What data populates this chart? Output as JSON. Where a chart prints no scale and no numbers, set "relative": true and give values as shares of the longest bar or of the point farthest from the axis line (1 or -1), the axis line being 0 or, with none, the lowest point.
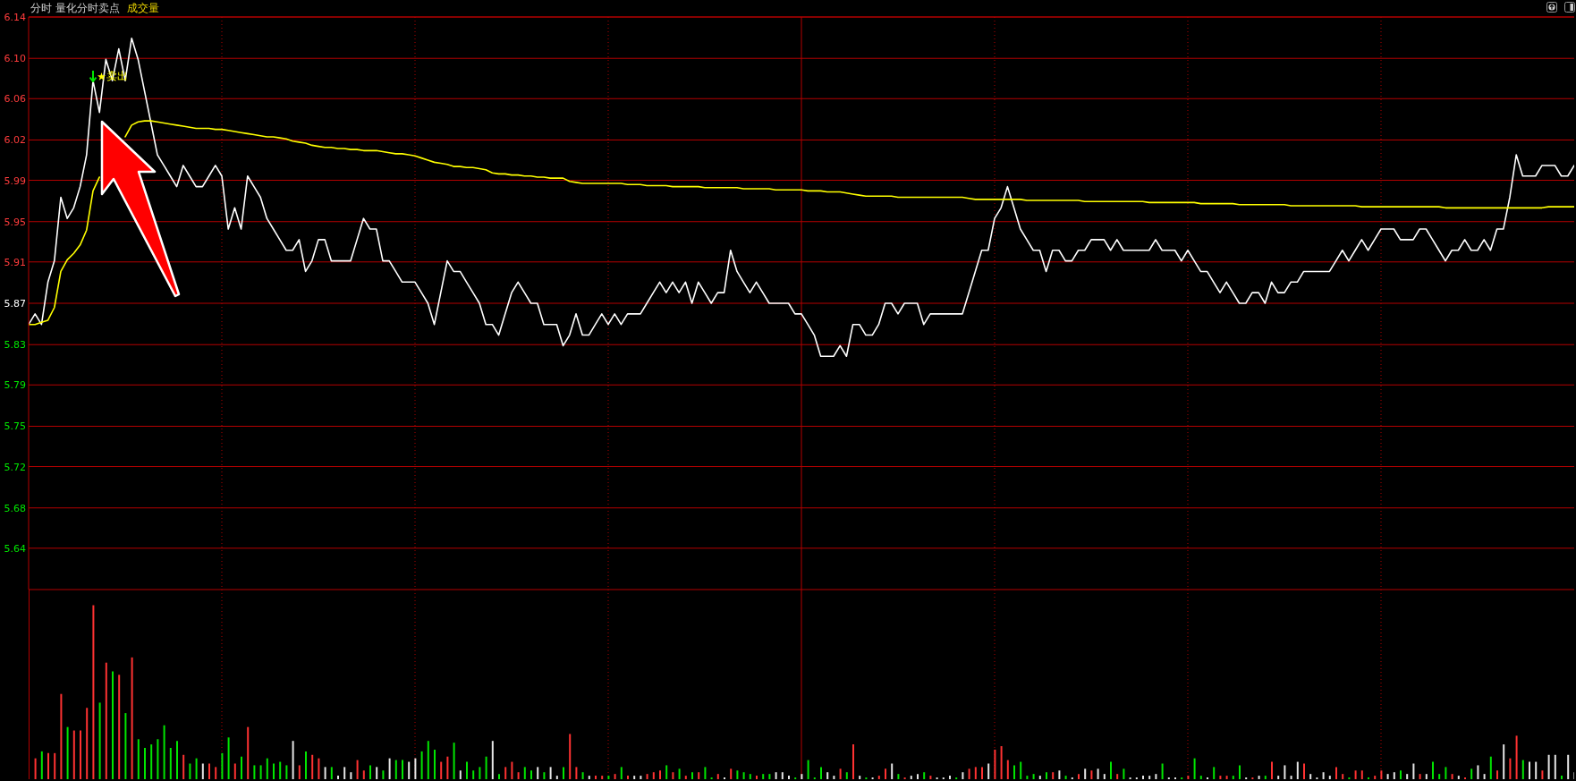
{
  "chart_data": [
    {
      "type": "line",
      "title": "分时 量化分时卖点",
      "subtitle": "成交量",
      "categories": [
        null,
        null,
        null,
        null,
        null,
        null,
        null,
        null,
        null,
        null,
        null,
        null,
        null,
        null,
        null,
        null,
        null,
        null,
        null,
        null,
        null,
        null,
        null,
        null,
        null,
        null,
        null,
        null,
        null,
        null,
        null,
        null,
        null,
        null,
        null,
        null,
        null,
        null,
        null,
        null,
        null,
        null,
        null,
        null,
        null,
        null,
        null,
        null,
        null,
        null,
        null,
        null,
        null,
        null,
        null,
        null,
        null,
        null,
        null,
        null,
        null,
        null,
        null,
        null,
        null,
        null,
        null,
        null,
        null,
        null,
        null,
        null,
        null,
        null,
        null,
        null,
        null,
        null,
        null,
        null,
        null,
        null,
        null,
        null,
        null,
        null,
        null,
        null,
        null,
        null,
        null,
        null,
        null,
        null,
        null,
        null,
        null,
        null,
        null,
        null,
        null,
        null,
        null,
        null,
        null,
        null,
        null,
        null,
        null,
        null,
        null,
        null,
        null,
        null,
        null,
        null,
        null,
        null,
        null,
        null,
        null,
        null,
        null,
        null,
        null,
        null,
        null,
        null,
        null,
        null,
        null,
        null,
        null,
        null,
        null,
        null,
        null,
        null,
        null,
        null,
        null,
        null,
        null,
        null,
        null,
        null,
        null,
        null,
        null,
        null,
        null,
        null,
        null,
        null,
        null,
        null,
        null,
        null,
        null,
        null,
        null,
        null,
        null,
        null,
        null,
        null,
        null,
        null,
        null,
        null,
        null,
        null,
        null,
        null,
        null,
        null,
        null,
        null,
        null,
        null,
        null,
        null,
        null,
        null,
        null,
        null,
        null,
        null,
        null,
        null,
        null,
        null,
        null,
        null,
        null,
        null,
        null,
        null,
        null,
        null,
        null,
        null,
        null,
        null,
        null,
        null,
        null,
        null,
        null,
        null,
        null,
        null,
        null,
        null,
        null,
        null,
        null,
        null,
        null,
        null,
        null,
        null,
        null,
        null,
        null,
        null,
        null,
        null,
        null,
        null,
        null,
        null,
        null,
        null,
        null,
        null,
        null,
        null,
        null,
        null,
        null
      ],
      "series": [
        {
          "color": "#ffffff",
          "values": [
            5.85,
            5.86,
            5.85,
            5.89,
            5.91,
            5.97,
            5.95,
            5.96,
            5.98,
            6.01,
            6.08,
            6.05,
            6.1,
            6.08,
            6.11,
            6.08,
            6.12,
            6.1,
            6.07,
            6.04,
            6.01,
            6.0,
            5.99,
            5.98,
            6.0,
            5.99,
            5.98,
            5.98,
            5.99,
            6.0,
            5.99,
            5.94,
            5.96,
            5.94,
            5.99,
            5.98,
            5.97,
            5.95,
            5.94,
            5.93,
            5.92,
            5.92,
            5.93,
            5.9,
            5.91,
            5.93,
            5.93,
            5.91,
            5.91,
            5.91,
            5.91,
            5.93,
            5.95,
            5.94,
            5.94,
            5.91,
            5.91,
            5.9,
            5.89,
            5.89,
            5.89,
            5.88,
            5.87,
            5.85,
            5.88,
            5.91,
            5.9,
            5.9,
            5.89,
            5.88,
            5.87,
            5.85,
            5.85,
            5.84,
            5.86,
            5.88,
            5.89,
            5.88,
            5.87,
            5.87,
            5.85,
            5.85,
            5.85,
            5.83,
            5.84,
            5.86,
            5.84,
            5.84,
            5.85,
            5.86,
            5.85,
            5.86,
            5.85,
            5.86,
            5.86,
            5.86,
            5.87,
            5.88,
            5.89,
            5.88,
            5.89,
            5.88,
            5.89,
            5.87,
            5.89,
            5.88,
            5.87,
            5.88,
            5.88,
            5.92,
            5.9,
            5.89,
            5.88,
            5.89,
            5.88,
            5.87,
            5.87,
            5.87,
            5.87,
            5.86,
            5.86,
            5.85,
            5.84,
            5.82,
            5.82,
            5.82,
            5.83,
            5.82,
            5.85,
            5.85,
            5.84,
            5.84,
            5.85,
            5.87,
            5.87,
            5.86,
            5.87,
            5.87,
            5.87,
            5.85,
            5.86,
            5.86,
            5.86,
            5.86,
            5.86,
            5.86,
            5.88,
            5.9,
            5.92,
            5.92,
            5.95,
            5.96,
            5.98,
            5.96,
            5.94,
            5.93,
            5.92,
            5.92,
            5.9,
            5.92,
            5.92,
            5.91,
            5.91,
            5.92,
            5.92,
            5.93,
            5.93,
            5.93,
            5.92,
            5.93,
            5.92,
            5.92,
            5.92,
            5.92,
            5.92,
            5.93,
            5.92,
            5.92,
            5.92,
            5.91,
            5.92,
            5.91,
            5.9,
            5.9,
            5.89,
            5.88,
            5.89,
            5.88,
            5.87,
            5.87,
            5.88,
            5.88,
            5.87,
            5.89,
            5.88,
            5.88,
            5.89,
            5.89,
            5.9,
            5.9,
            5.9,
            5.9,
            5.9,
            5.91,
            5.92,
            5.91,
            5.92,
            5.93,
            5.92,
            5.93,
            5.94,
            5.94,
            5.94,
            5.93,
            5.93,
            5.93,
            5.94,
            5.94,
            5.93,
            5.92,
            5.91,
            5.92,
            5.92,
            5.93,
            5.92,
            5.92,
            5.93,
            5.92,
            5.94,
            5.94,
            5.97,
            6.01,
            5.99,
            5.99,
            5.99,
            6.0,
            6.0,
            6.0,
            5.99,
            5.99,
            6.0
          ]
        },
        {
          "color": "#ffff00",
          "values": [
            5.85,
            5.85,
            5.852,
            5.854,
            5.866,
            5.9,
            5.911,
            5.917,
            5.925,
            5.939,
            5.976,
            5.989,
            null,
            null,
            null,
            6.027,
            6.038,
            6.041,
            6.042,
            6.042,
            6.041,
            6.04,
            6.039,
            6.038,
            6.037,
            6.036,
            6.035,
            6.035,
            6.035,
            6.034,
            6.034,
            6.033,
            6.032,
            6.031,
            6.03,
            6.029,
            6.028,
            6.027,
            6.027,
            6.026,
            6.025,
            6.023,
            6.022,
            6.021,
            6.019,
            6.018,
            6.017,
            6.017,
            6.016,
            6.016,
            6.015,
            6.015,
            6.014,
            6.014,
            6.014,
            6.013,
            6.012,
            6.011,
            6.011,
            6.01,
            6.009,
            6.007,
            6.005,
            6.003,
            6.002,
            6.001,
            5.999,
            5.999,
            5.998,
            5.998,
            5.997,
            5.996,
            5.993,
            5.992,
            5.992,
            5.991,
            5.991,
            5.99,
            5.99,
            5.989,
            5.989,
            5.988,
            5.988,
            5.988,
            5.985,
            5.984,
            5.983,
            5.983,
            5.983,
            5.983,
            5.983,
            5.983,
            5.983,
            5.982,
            5.982,
            5.982,
            5.981,
            5.981,
            5.981,
            5.981,
            5.98,
            5.98,
            5.98,
            5.98,
            5.98,
            5.979,
            5.979,
            5.979,
            5.979,
            5.979,
            5.979,
            5.978,
            5.978,
            5.978,
            5.978,
            5.978,
            5.977,
            5.977,
            5.977,
            5.977,
            5.977,
            5.976,
            5.976,
            5.976,
            5.975,
            5.975,
            5.975,
            5.974,
            5.973,
            5.972,
            5.971,
            5.971,
            5.971,
            5.971,
            5.971,
            5.97,
            5.97,
            5.97,
            5.97,
            5.97,
            5.97,
            5.97,
            5.97,
            5.97,
            5.97,
            5.97,
            5.969,
            5.968,
            5.968,
            5.968,
            5.968,
            5.968,
            5.968,
            5.968,
            5.968,
            5.967,
            5.967,
            5.967,
            5.967,
            5.967,
            5.967,
            5.967,
            5.967,
            5.967,
            5.966,
            5.966,
            5.966,
            5.966,
            5.966,
            5.966,
            5.966,
            5.966,
            5.966,
            5.966,
            5.965,
            5.965,
            5.965,
            5.965,
            5.965,
            5.965,
            5.965,
            5.965,
            5.964,
            5.964,
            5.964,
            5.964,
            5.964,
            5.964,
            5.963,
            5.963,
            5.963,
            5.963,
            5.963,
            5.963,
            5.963,
            5.963,
            5.962,
            5.962,
            5.962,
            5.962,
            5.962,
            5.962,
            5.962,
            5.962,
            5.962,
            5.962,
            5.962,
            5.961,
            5.961,
            5.961,
            5.961,
            5.961,
            5.961,
            5.961,
            5.961,
            5.961,
            5.961,
            5.961,
            5.961,
            5.961,
            5.96,
            5.96,
            5.96,
            5.96,
            5.96,
            5.96,
            5.96,
            5.96,
            5.96,
            5.96,
            5.96,
            5.96,
            5.96,
            5.96,
            5.96,
            5.96,
            5.961,
            5.961,
            5.961,
            5.961,
            5.961
          ]
        }
      ],
      "ylim": [
        5.6,
        6.14
      ],
      "yticks": [
        {
          "value": 5.639,
          "label": "5.64"
        },
        {
          "value": 5.677,
          "label": "5.68"
        },
        {
          "value": 5.716,
          "label": "5.72"
        },
        {
          "value": 5.754,
          "label": "5.75"
        },
        {
          "value": 5.793,
          "label": "5.79"
        },
        {
          "value": 5.831,
          "label": "5.83"
        },
        5.87,
        {
          "value": 5.909,
          "label": "5.91"
        },
        {
          "value": 5.947,
          "label": "5.95"
        },
        {
          "value": 5.986,
          "label": "5.99"
        },
        {
          "value": 6.024,
          "label": "6.02"
        },
        {
          "value": 6.063,
          "label": "6.06"
        },
        {
          "value": 6.101,
          "label": "6.10"
        },
        6.14
      ],
      "grid": true,
      "tick_labels": "y",
      "annotations": [
        "卖出"
      ]
    },
    {
      "type": "bar",
      "relative": true,
      "grid": "x",
      "tick_labels": false,
      "categories": [
        null,
        null,
        null,
        null,
        null,
        null,
        null,
        null,
        null,
        null,
        null,
        null,
        null,
        null,
        null,
        null,
        null,
        null,
        null,
        null,
        null,
        null,
        null,
        null,
        null,
        null,
        null,
        null,
        null,
        null,
        null,
        null,
        null,
        null,
        null,
        null,
        null,
        null,
        null,
        null,
        null,
        null,
        null,
        null,
        null,
        null,
        null,
        null,
        null,
        null,
        null,
        null,
        null,
        null,
        null,
        null,
        null,
        null,
        null,
        null,
        null,
        null,
        null,
        null,
        null,
        null,
        null,
        null,
        null,
        null,
        null,
        null,
        null,
        null,
        null,
        null,
        null,
        null,
        null,
        null,
        null,
        null,
        null,
        null,
        null,
        null,
        null,
        null,
        null,
        null,
        null,
        null,
        null,
        null,
        null,
        null,
        null,
        null,
        null,
        null,
        null,
        null,
        null,
        null,
        null,
        null,
        null,
        null,
        null,
        null,
        null,
        null,
        null,
        null,
        null,
        null,
        null,
        null,
        null,
        null,
        null,
        null,
        null,
        null,
        null,
        null,
        null,
        null,
        null,
        null,
        null,
        null,
        null,
        null,
        null,
        null,
        null,
        null,
        null,
        null,
        null,
        null,
        null,
        null,
        null,
        null,
        null,
        null,
        null,
        null,
        null,
        null,
        null,
        null,
        null,
        null,
        null,
        null,
        null,
        null,
        null,
        null,
        null,
        null,
        null,
        null,
        null,
        null,
        null,
        null,
        null,
        null,
        null,
        null,
        null,
        null,
        null,
        null,
        null,
        null,
        null,
        null,
        null,
        null,
        null,
        null,
        null,
        null,
        null,
        null,
        null,
        null,
        null,
        null,
        null,
        null,
        null,
        null,
        null,
        null,
        null,
        null,
        null,
        null,
        null,
        null,
        null,
        null,
        null,
        null,
        null,
        null,
        null,
        null,
        null,
        null,
        null,
        null,
        null,
        null,
        null,
        null,
        null,
        null,
        null,
        null,
        null,
        null,
        null,
        null,
        null,
        null,
        null,
        null,
        null,
        null,
        null,
        null,
        null,
        null,
        null
      ],
      "values": [
        null,
        0.12,
        0.16,
        0.15,
        0.15,
        0.49,
        0.3,
        0.28,
        0.28,
        0.41,
        1,
        0.44,
        0.67,
        0.62,
        0.6,
        0.38,
        0.7,
        0.23,
        0.18,
        0.2,
        0.23,
        0.31,
        0.18,
        0.22,
        0.14,
        0.09,
        0.12,
        0.09,
        0.09,
        0.07,
        0.15,
        0.24,
        0.09,
        0.13,
        0.3,
        0.08,
        0.08,
        0.12,
        0.09,
        0.1,
        0.08,
        0.22,
        0.08,
        0.16,
        0.14,
        0.12,
        0.07,
        0.07,
        0.02,
        0.07,
        0.04,
        0.11,
        0.05,
        0.08,
        0.07,
        0.05,
        0.12,
        0.11,
        0.11,
        0.1,
        0.12,
        0.16,
        0.22,
        0.17,
        0.1,
        0.13,
        0.21,
        0.05,
        0.1,
        0.05,
        0.07,
        0.13,
        0.22,
        0.03,
        0.07,
        0.1,
        0.04,
        0.07,
        0.05,
        0.07,
        0.04,
        0.07,
        0.02,
        0.07,
        0.26,
        0.07,
        0.04,
        0.02,
        0.02,
        0.02,
        0.02,
        0.03,
        0.07,
        0.02,
        0.02,
        0.02,
        0.03,
        0.04,
        0.05,
        0.08,
        0.04,
        0.06,
        0.02,
        0.04,
        0.04,
        0.07,
        0.01,
        0.03,
        0.01,
        0.06,
        0.05,
        0.04,
        0.03,
        0.02,
        0.03,
        0.03,
        0.04,
        0.04,
        0.02,
        0.01,
        0.03,
        0.11,
        0.01,
        0.07,
        0.04,
        0.02,
        0.06,
        0.04,
        0.2,
        0.02,
        0.01,
        0.01,
        0.02,
        0.06,
        0.09,
        0.03,
        0.01,
        0.02,
        0.03,
        0.04,
        0.02,
        0.01,
        0.01,
        0.02,
        0.01,
        0.04,
        0.06,
        0.07,
        0.07,
        0.09,
        0.17,
        0.19,
        0.11,
        0.08,
        0.1,
        0.02,
        0.03,
        0.02,
        0.04,
        0.04,
        0.05,
        0.02,
        0.01,
        0.03,
        0.06,
        0.05,
        0.06,
        0.03,
        0.1,
        0.03,
        0.06,
        0.01,
        0.01,
        0.02,
        0.02,
        0.03,
        0.09,
        0.01,
        0.01,
        0.01,
        0.02,
        0.12,
        0.02,
        0.01,
        0.07,
        0.02,
        0.02,
        0.02,
        0.08,
        0.01,
        0.01,
        0.02,
        0.02,
        0.1,
        0.02,
        0.08,
        0.02,
        0.1,
        0.09,
        0.03,
        0.01,
        0.04,
        0.02,
        0.07,
        0.03,
        0.01,
        0.05,
        0.05,
        0.01,
        0.02,
        0.05,
        0.03,
        0.04,
        0.05,
        0.03,
        0.09,
        0.03,
        0.03,
        0.1,
        0.03,
        0.07,
        0.03,
        0.02,
        0.01,
        0.06,
        0.08,
        0.03,
        0.13,
        0.05,
        0.2,
        0.12,
        0.25,
        0.11,
        0.1,
        0.1,
        0.05,
        0.14,
        0.14,
        0.02,
        0.14,
        0.04
      ],
      "colors": [
        null,
        "#ff3232",
        "#00e600",
        "#ff3232",
        "#ff3232",
        "#ff3232",
        "#00e600",
        "#ff3232",
        "#ff3232",
        "#ff3232",
        "#ff3232",
        "#00e600",
        "#ff3232",
        "#00e600",
        "#ff3232",
        "#00e600",
        "#ff3232",
        "#00e600",
        "#00e600",
        "#00e600",
        "#00e600",
        "#00e600",
        "#00e600",
        "#00e600",
        "#ff3232",
        "#00e600",
        "#00e600",
        "#e6e6e6",
        "#ff3232",
        "#ff3232",
        "#00e600",
        "#00e600",
        "#ff3232",
        "#00e600",
        "#ff3232",
        "#00e600",
        "#00e600",
        "#00e600",
        "#00e600",
        "#00e600",
        "#00e600",
        "#e6e6e6",
        "#ff3232",
        "#00e600",
        "#ff3232",
        "#ff3232",
        "#e6e6e6",
        "#00e600",
        "#e6e6e6",
        "#e6e6e6",
        "#e6e6e6",
        "#ff3232",
        "#ff3232",
        "#00e600",
        "#e6e6e6",
        "#00e600",
        "#e6e6e6",
        "#00e600",
        "#00e600",
        "#e6e6e6",
        "#e6e6e6",
        "#00e600",
        "#00e600",
        "#00e600",
        "#ff3232",
        "#ff3232",
        "#00e600",
        "#e6e6e6",
        "#00e600",
        "#00e600",
        "#00e600",
        "#00e600",
        "#e6e6e6",
        "#00e600",
        "#ff3232",
        "#ff3232",
        "#ff3232",
        "#00e600",
        "#00e600",
        "#e6e6e6",
        "#00e600",
        "#e6e6e6",
        "#e6e6e6",
        "#00e600",
        "#ff3232",
        "#ff3232",
        "#00e600",
        "#e6e6e6",
        "#ff3232",
        "#ff3232",
        "#00e600",
        "#ff3232",
        "#00e600",
        "#ff3232",
        "#e6e6e6",
        "#e6e6e6",
        "#ff3232",
        "#ff3232",
        "#ff3232",
        "#00e600",
        "#ff3232",
        "#00e600",
        "#ff3232",
        "#00e600",
        "#ff3232",
        "#00e600",
        "#00e600",
        "#ff3232",
        "#e6e6e6",
        "#ff3232",
        "#00e600",
        "#00e600",
        "#00e600",
        "#ff3232",
        "#00e600",
        "#00e600",
        "#e6e6e6",
        "#e6e6e6",
        "#e6e6e6",
        "#00e600",
        "#e6e6e6",
        "#00e600",
        "#00e600",
        "#00e600",
        "#e6e6e6",
        "#e6e6e6",
        "#ff3232",
        "#00e600",
        "#ff3232",
        "#e6e6e6",
        "#00e600",
        "#e6e6e6",
        "#ff3232",
        "#ff3232",
        "#e6e6e6",
        "#00e600",
        "#ff3232",
        "#e6e6e6",
        "#e6e6e6",
        "#00e600",
        "#ff3232",
        "#e6e6e6",
        "#e6e6e6",
        "#e6e6e6",
        "#00e600",
        "#e6e6e6",
        "#ff3232",
        "#ff3232",
        "#ff3232",
        "#e6e6e6",
        "#ff3232",
        "#ff3232",
        "#ff3232",
        "#00e600",
        "#00e600",
        "#00e600",
        "#00e600",
        "#e6e6e6",
        "#00e600",
        "#ff3232",
        "#e6e6e6",
        "#00e600",
        "#e6e6e6",
        "#ff3232",
        "#e6e6e6",
        "#ff3232",
        "#e6e6e6",
        "#e6e6e6",
        "#00e600",
        "#ff3232",
        "#00e600",
        "#e6e6e6",
        "#e6e6e6",
        "#e6e6e6",
        "#e6e6e6",
        "#e6e6e6",
        "#00e600",
        "#e6e6e6",
        "#e6e6e6",
        "#00e600",
        "#ff3232",
        "#00e600",
        "#00e600",
        "#e6e6e6",
        "#00e600",
        "#ff3232",
        "#ff3232",
        "#00e600",
        "#00e600",
        "#e6e6e6",
        "#ff3232",
        "#e6e6e6",
        "#00e600",
        "#ff3232",
        "#e6e6e6",
        "#e6e6e6",
        "#e6e6e6",
        "#e6e6e6",
        "#ff3232",
        "#e6e6e6",
        "#e6e6e6",
        "#e6e6e6",
        "#e6e6e6",
        "#ff3232",
        "#ff3232",
        "#00e600",
        "#ff3232",
        "#ff3232",
        "#00e600",
        "#ff3232",
        "#ff3232",
        "#e6e6e6",
        "#e6e6e6",
        "#00e600",
        "#e6e6e6",
        "#e6e6e6",
        "#ff3232",
        "#e6e6e6",
        "#00e600",
        "#00e600",
        "#00e600",
        "#ff3232",
        "#e6e6e6",
        "#ff3232",
        "#00e600",
        "#e6e6e6",
        "#e6e6e6",
        "#00e600",
        "#ff3232",
        "#e6e6e6",
        "#ff3232",
        "#ff3232",
        "#00e600",
        "#e6e6e6",
        "#e6e6e6",
        "#ff3232",
        "#e6e6e6",
        "#e6e6e6",
        "#00e600",
        "#e6e6e6",
        "#e6e6e6"
      ]
    }
  ]
}
